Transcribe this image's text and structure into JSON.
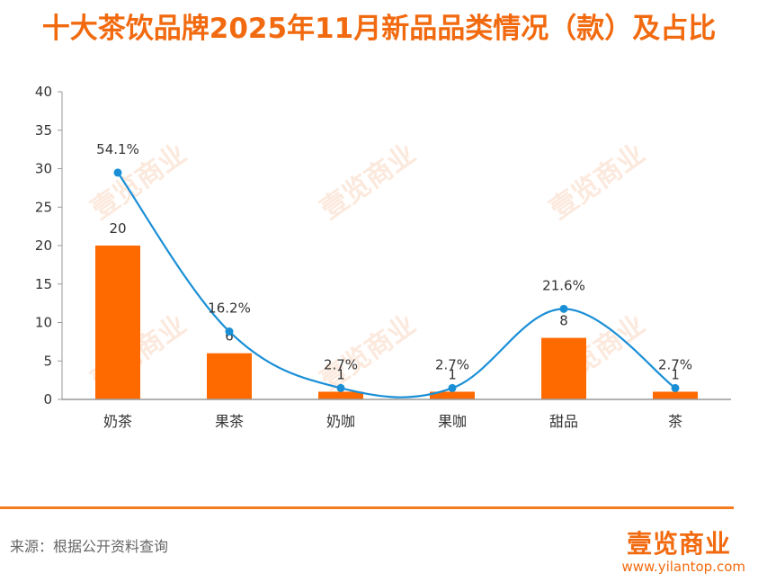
{
  "chart_data": {
    "type": "bar",
    "title": "十大茶饮品牌2025年11月新品品类情况（款）及占比",
    "categories": [
      "奶茶",
      "果茶",
      "奶咖",
      "果咖",
      "甜品",
      "茶"
    ],
    "series": [
      {
        "type": "bar",
        "values": [
          20,
          6,
          1,
          1,
          8,
          1
        ],
        "labels": [
          "20",
          "6",
          "1",
          "1",
          "8",
          "1"
        ]
      },
      {
        "type": "line",
        "values": [
          54.1,
          16.2,
          2.7,
          2.7,
          21.6,
          2.7
        ],
        "labels": [
          "54.1%",
          "16.2%",
          "2.7%",
          "2.7%",
          "21.6%",
          "2.7%"
        ]
      }
    ],
    "ylim": [
      0,
      40
    ],
    "yticks": [
      "0",
      "5",
      "10",
      "15",
      "20",
      "25",
      "30",
      "35",
      "40"
    ],
    "grid": false,
    "colors": {
      "bar": "#ff6a00",
      "line": "#1a8fd6",
      "accent": "#f26a0f"
    }
  },
  "footer": {
    "source": "来源：根据公开资料查询",
    "brand": "壹览商业",
    "url": "www.yilantop.com"
  },
  "watermark": "壹览商业"
}
